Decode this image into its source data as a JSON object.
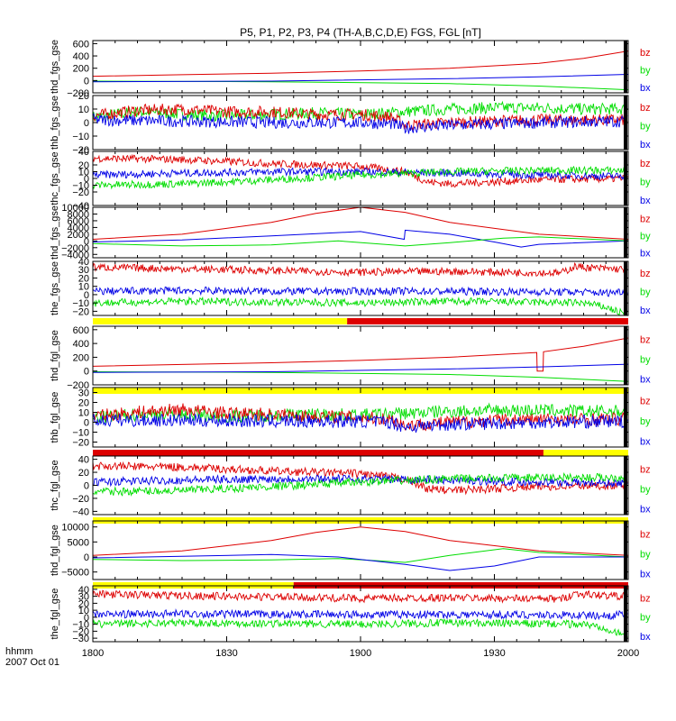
{
  "chart_data": {
    "type": "line",
    "title": "P5, P1, P2, P3, P4 (TH-A,B,C,D,E) FGS, FGL [nT]",
    "x_tick_labels": [
      "1800",
      "1830",
      "1900",
      "1930",
      "2000"
    ],
    "x_minutes": [
      0,
      30,
      60,
      90,
      120
    ],
    "x_range_minutes": [
      0,
      120
    ],
    "time_label": "hhmm",
    "date_label": "2007 Oct 01",
    "series_colors": {
      "bx": "#0000e6",
      "by": "#00dd00",
      "bz": "#dd0000"
    },
    "flag_colors": {
      "yellow": "#ffff00",
      "red": "#dd0000"
    },
    "panels": [
      {
        "ylabel": "thd_fgs_gse",
        "ylim": [
          -200,
          650
        ],
        "yticks": [
          -200,
          0,
          200,
          400,
          600
        ],
        "ytick_labels": [
          "−200",
          "0",
          "200",
          "400",
          "600"
        ],
        "legend": [
          "bz",
          "by",
          "bx"
        ],
        "series": [
          {
            "name": "bz",
            "x": [
              0,
              20,
              40,
              60,
              80,
              100,
              110,
              120
            ],
            "values": [
              70,
              95,
              120,
              155,
              200,
              280,
              360,
              480
            ]
          },
          {
            "name": "by",
            "x": [
              0,
              40,
              80,
              100,
              120
            ],
            "values": [
              -10,
              -20,
              -50,
              -90,
              -150
            ]
          },
          {
            "name": "bx",
            "x": [
              0,
              40,
              80,
              100,
              120
            ],
            "values": [
              -20,
              -10,
              30,
              60,
              100
            ]
          }
        ],
        "flags": []
      },
      {
        "ylabel": "thb_fgs_gse",
        "ylim": [
          -20,
          20
        ],
        "yticks": [
          -20,
          -10,
          0,
          10,
          20
        ],
        "ytick_labels": [
          "−20",
          "−10",
          "0",
          "10",
          "20"
        ],
        "legend": [
          "bz",
          "by",
          "bx"
        ],
        "series": [
          {
            "name": "by",
            "x": [
              0,
              10,
              20,
              30,
              40,
              50,
              60,
              70,
              80,
              90,
              100,
              110,
              120
            ],
            "values": [
              4,
              8,
              6,
              5,
              6,
              7,
              6,
              8,
              10,
              11,
              11,
              10,
              10
            ]
          },
          {
            "name": "bz",
            "x": [
              0,
              10,
              20,
              30,
              40,
              50,
              60,
              67,
              70,
              80,
              90,
              100,
              110,
              120
            ],
            "values": [
              5,
              9,
              10,
              8,
              8,
              6,
              6,
              4,
              -2,
              0,
              1,
              2,
              2,
              2
            ]
          },
          {
            "name": "bx",
            "x": [
              0,
              20,
              40,
              60,
              67,
              70,
              80,
              100,
              120
            ],
            "values": [
              2,
              1,
              0,
              0,
              -1,
              -4,
              -2,
              0,
              1
            ]
          }
        ],
        "flags": []
      },
      {
        "ylabel": "thc_fgs_gse",
        "ylim": [
          -40,
          40
        ],
        "yticks": [
          -40,
          -20,
          -10,
          0,
          10,
          20,
          40
        ],
        "ytick_labels": [
          "−40",
          "−20",
          "−10",
          "0",
          "10",
          "20",
          "40"
        ],
        "legend": [
          "bz",
          "by",
          "bx"
        ],
        "series": [
          {
            "name": "bz",
            "x": [
              0,
              20,
              40,
              60,
              70,
              75,
              80,
              100,
              120
            ],
            "values": [
              30,
              28,
              22,
              18,
              10,
              -5,
              -8,
              -2,
              0
            ]
          },
          {
            "name": "bx",
            "x": [
              0,
              20,
              40,
              60,
              80,
              100,
              120
            ],
            "values": [
              5,
              8,
              10,
              10,
              8,
              5,
              3
            ]
          },
          {
            "name": "by",
            "x": [
              0,
              20,
              40,
              60,
              80,
              100,
              120
            ],
            "values": [
              -10,
              -8,
              -2,
              5,
              10,
              12,
              12
            ]
          }
        ],
        "flags": []
      },
      {
        "ylabel": "thd_fgs_gse",
        "ylim": [
          -5000,
          10000
        ],
        "yticks": [
          -4000,
          -2000,
          0,
          2000,
          4000,
          6000,
          8000,
          10000
        ],
        "ytick_labels": [
          "−4000",
          "−2000",
          "0",
          "2000",
          "4000",
          "6000",
          "8000",
          "10000"
        ],
        "legend": [
          "bz",
          "by",
          "bx"
        ],
        "series": [
          {
            "name": "bz",
            "x": [
              0,
              20,
              40,
              50,
              60,
              70,
              80,
              100,
              120
            ],
            "values": [
              500,
              2000,
              5500,
              8200,
              10000,
              8500,
              5500,
              2000,
              500
            ]
          },
          {
            "name": "bx",
            "x": [
              0,
              20,
              40,
              60,
              69.8,
              70,
              80,
              90,
              96,
              100,
              120
            ],
            "values": [
              -300,
              300,
              1500,
              2800,
              500,
              3200,
              2000,
              -300,
              -1800,
              -1000,
              0
            ]
          },
          {
            "name": "by",
            "x": [
              0,
              20,
              40,
              55,
              70,
              80,
              92,
              100,
              120
            ],
            "values": [
              -800,
              -1500,
              -1200,
              0,
              -1500,
              -500,
              800,
              1200,
              0
            ]
          }
        ],
        "flags": []
      },
      {
        "ylabel": "the_fgs_gse",
        "ylim": [
          -25,
          40
        ],
        "yticks": [
          -20,
          -10,
          0,
          10,
          20,
          30,
          40
        ],
        "ytick_labels": [
          "−20",
          "−10",
          "0",
          "10",
          "20",
          "30",
          "40"
        ],
        "legend": [
          "bz",
          "by",
          "bx"
        ],
        "series": [
          {
            "name": "bz",
            "x": [
              0,
              20,
              40,
              60,
              80,
              105,
              108,
              112,
              120
            ],
            "values": [
              33,
              31,
              29,
              27,
              28,
              26,
              34,
              32,
              30
            ]
          },
          {
            "name": "bx",
            "x": [
              0,
              20,
              40,
              60,
              80,
              110,
              115,
              120
            ],
            "values": [
              4,
              5,
              4,
              4,
              4,
              3,
              2,
              5
            ]
          },
          {
            "name": "by",
            "x": [
              0,
              20,
              40,
              60,
              80,
              110,
              115,
              120
            ],
            "values": [
              -10,
              -8,
              -9,
              -10,
              -8,
              -10,
              -15,
              -25
            ]
          }
        ],
        "flags": [
          {
            "color": "yellow",
            "x0": 0,
            "x1": 57
          },
          {
            "color": "red",
            "x0": 57,
            "x1": 120
          }
        ]
      },
      {
        "ylabel": "thd_fgl_gse",
        "ylim": [
          -200,
          650
        ],
        "yticks": [
          -200,
          0,
          200,
          400,
          600
        ],
        "ytick_labels": [
          "−200",
          "0",
          "200",
          "400",
          "600"
        ],
        "legend": [
          "bz",
          "by",
          "bx"
        ],
        "series": [
          {
            "name": "bz",
            "x": [
              0,
              20,
              40,
              60,
              80,
              99.5,
              99.6,
              100.9,
              101,
              110,
              120
            ],
            "values": [
              70,
              95,
              120,
              155,
              200,
              270,
              0,
              0,
              280,
              360,
              480
            ]
          },
          {
            "name": "by",
            "x": [
              0,
              40,
              80,
              100,
              120
            ],
            "values": [
              -10,
              -20,
              -50,
              -90,
              -150
            ]
          },
          {
            "name": "bx",
            "x": [
              0,
              40,
              80,
              100,
              120
            ],
            "values": [
              -20,
              -10,
              30,
              60,
              100
            ]
          }
        ],
        "flags": [
          {
            "color": "yellow",
            "x0": 0,
            "x1": 120
          }
        ]
      },
      {
        "ylabel": "thb_fgl_gse",
        "ylim": [
          -25,
          35
        ],
        "yticks": [
          -20,
          -10,
          0,
          10,
          20,
          30
        ],
        "ytick_labels": [
          "−20",
          "−10",
          "0",
          "10",
          "20",
          "30"
        ],
        "legend": [
          "bz",
          "by",
          "bx"
        ],
        "series": [
          {
            "name": "by",
            "x": [
              0,
              10,
              20,
              30,
              40,
              50,
              60,
              70,
              80,
              90,
              100,
              110,
              120
            ],
            "values": [
              4,
              8,
              8,
              6,
              7,
              8,
              7,
              9,
              11,
              12,
              12,
              11,
              11
            ]
          },
          {
            "name": "bz",
            "x": [
              0,
              10,
              20,
              30,
              40,
              50,
              60,
              67,
              70,
              80,
              90,
              100,
              110,
              120
            ],
            "values": [
              6,
              10,
              13,
              9,
              8,
              6,
              5,
              3,
              -3,
              0,
              2,
              3,
              3,
              3
            ]
          },
          {
            "name": "bx",
            "x": [
              0,
              20,
              40,
              60,
              67,
              70,
              80,
              100,
              120
            ],
            "values": [
              2,
              2,
              1,
              1,
              0,
              -5,
              -2,
              0,
              1
            ]
          }
        ],
        "flags": [
          {
            "color": "red",
            "x0": 0,
            "x1": 101
          },
          {
            "color": "yellow",
            "x0": 101,
            "x1": 120
          }
        ]
      },
      {
        "ylabel": "thc_fgl_gse",
        "ylim": [
          -45,
          45
        ],
        "yticks": [
          -40,
          -20,
          0,
          20,
          40
        ],
        "ytick_labels": [
          "−40",
          "−20",
          "0",
          "20",
          "40"
        ],
        "legend": [
          "bz",
          "by",
          "bx"
        ],
        "series": [
          {
            "name": "bz",
            "x": [
              0,
              20,
              40,
              60,
              70,
              75,
              80,
              100,
              120
            ],
            "values": [
              30,
              28,
              22,
              18,
              10,
              -5,
              -8,
              -2,
              0
            ]
          },
          {
            "name": "bx",
            "x": [
              0,
              20,
              40,
              60,
              80,
              100,
              120
            ],
            "values": [
              5,
              8,
              10,
              10,
              8,
              5,
              3
            ]
          },
          {
            "name": "by",
            "x": [
              0,
              20,
              40,
              60,
              80,
              100,
              120
            ],
            "values": [
              -10,
              -8,
              -2,
              5,
              10,
              12,
              12
            ]
          }
        ],
        "flags": [
          {
            "color": "yellow",
            "x0": 0,
            "x1": 120
          }
        ]
      },
      {
        "ylabel": "thd_fgl_gse",
        "ylim": [
          -7500,
          12000
        ],
        "yticks": [
          -5000,
          0,
          5000,
          10000
        ],
        "ytick_labels": [
          "−5000",
          "0",
          "5000",
          "10000"
        ],
        "legend": [
          "bz",
          "by",
          "bx"
        ],
        "series": [
          {
            "name": "bz",
            "x": [
              0,
              20,
              40,
              50,
              60,
              70,
              80,
              100,
              120
            ],
            "values": [
              500,
              2000,
              5500,
              8200,
              10000,
              8500,
              5500,
              2000,
              500
            ]
          },
          {
            "name": "by",
            "x": [
              0,
              20,
              40,
              55,
              70,
              80,
              92,
              100,
              120
            ],
            "values": [
              -800,
              -1200,
              -1000,
              -500,
              -1800,
              500,
              2800,
              1500,
              0
            ]
          },
          {
            "name": "bx",
            "x": [
              0,
              20,
              40,
              55,
              70,
              80,
              90,
              100,
              120
            ],
            "values": [
              -300,
              200,
              800,
              0,
              -2500,
              -4500,
              -3000,
              0,
              0
            ]
          }
        ],
        "flags": [
          {
            "color": "yellow",
            "x0": 0,
            "x1": 45
          },
          {
            "color": "red",
            "x0": 45,
            "x1": 120
          }
        ]
      },
      {
        "ylabel": "the_fgl_gse",
        "ylim": [
          -35,
          45
        ],
        "yticks": [
          -30,
          -20,
          -10,
          0,
          10,
          20,
          30,
          40
        ],
        "ytick_labels": [
          "−30",
          "−20",
          "−10",
          "0",
          "10",
          "20",
          "30",
          "40"
        ],
        "legend": [
          "bz",
          "by",
          "bx"
        ],
        "series": [
          {
            "name": "bz",
            "x": [
              0,
              20,
              40,
              60,
              80,
              105,
              108,
              112,
              120
            ],
            "values": [
              33,
              31,
              29,
              27,
              28,
              26,
              34,
              32,
              30
            ]
          },
          {
            "name": "bx",
            "x": [
              0,
              20,
              40,
              60,
              80,
              110,
              115,
              120
            ],
            "values": [
              4,
              5,
              4,
              4,
              4,
              3,
              2,
              5
            ]
          },
          {
            "name": "by",
            "x": [
              0,
              20,
              40,
              60,
              80,
              110,
              115,
              120
            ],
            "values": [
              -10,
              -8,
              -9,
              -10,
              -8,
              -10,
              -15,
              -30
            ]
          }
        ],
        "flags": []
      }
    ]
  }
}
